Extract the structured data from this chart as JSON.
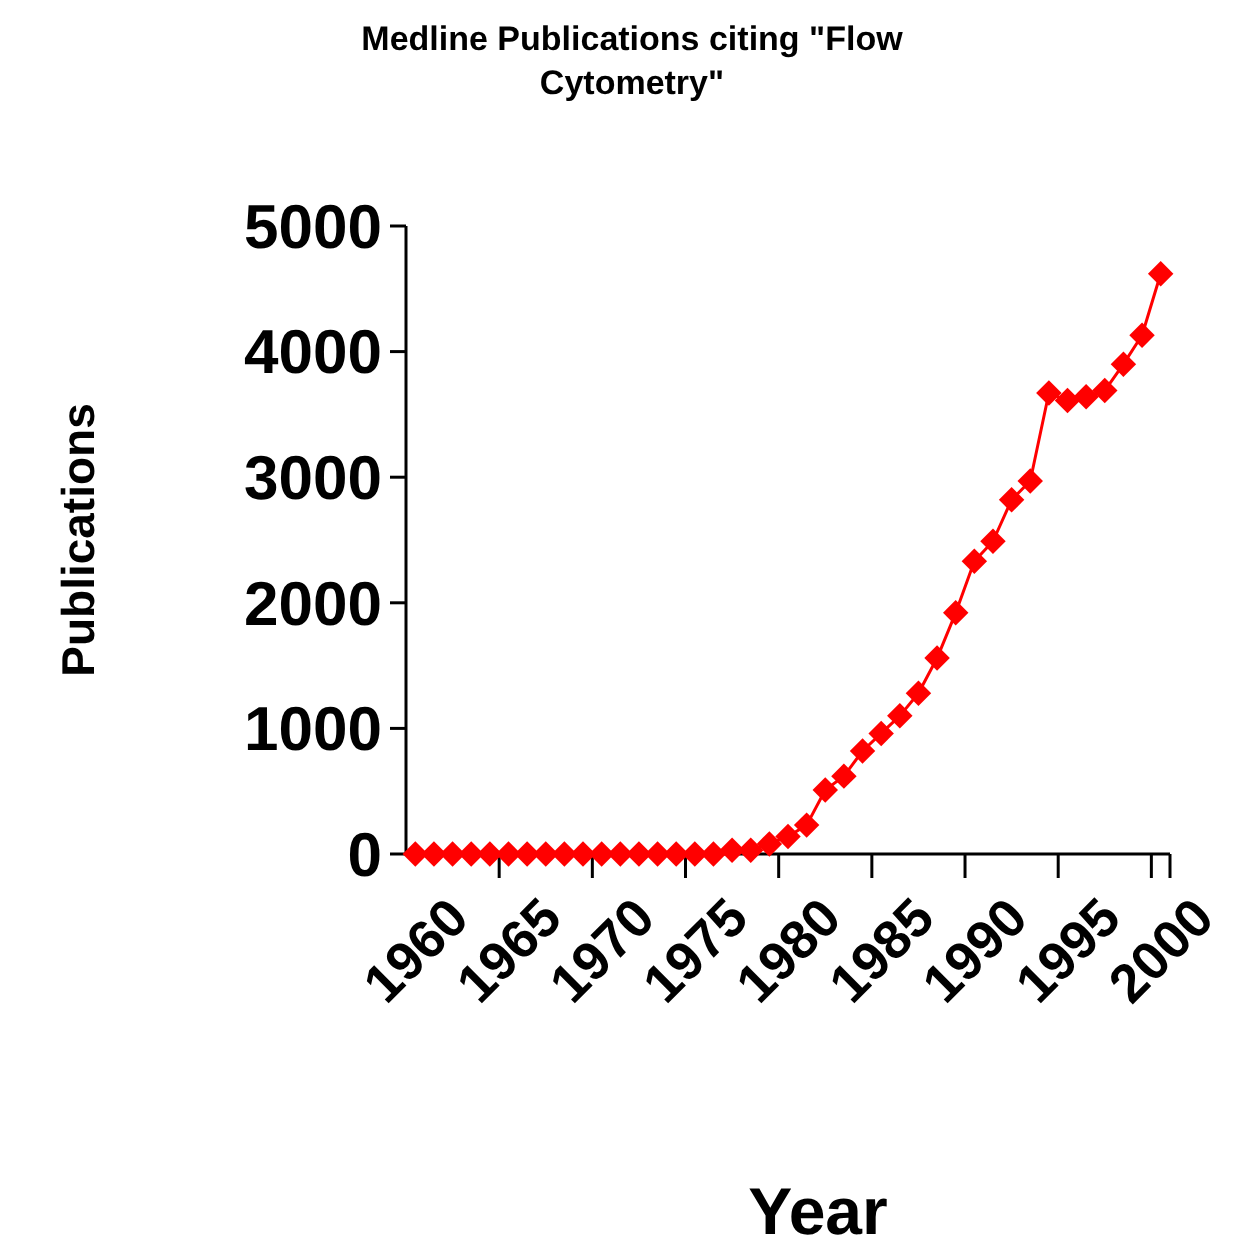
{
  "chart_data": {
    "type": "line",
    "title": "Medline Publications citing \"Flow Cytometry\"",
    "xlabel": "Year",
    "ylabel": "Publications",
    "categories": [
      "1960",
      null,
      null,
      null,
      null,
      "1965",
      null,
      null,
      null,
      null,
      "1970",
      null,
      null,
      null,
      null,
      "1975",
      null,
      null,
      null,
      null,
      "1980",
      null,
      null,
      null,
      null,
      "1985",
      null,
      null,
      null,
      null,
      "1990",
      null,
      null,
      null,
      null,
      "1995",
      null,
      null,
      null,
      null,
      "2000"
    ],
    "series": [
      {
        "color": "#ff0000",
        "values": [
          0,
          0,
          0,
          0,
          0,
          0,
          0,
          0,
          0,
          0,
          0,
          0,
          0,
          0,
          0,
          0,
          0,
          30,
          30,
          80,
          140,
          230,
          510,
          620,
          820,
          960,
          1100,
          1280,
          1560,
          1920,
          2330,
          2490,
          2820,
          2970,
          3670,
          3610,
          3640,
          3690,
          3900,
          4130,
          4620
        ]
      }
    ],
    "ylim": [
      0,
      5000
    ],
    "yticks": [
      0,
      1000,
      2000,
      3000,
      4000,
      5000
    ],
    "grid": false,
    "marker": "diamond",
    "line_style": "solid"
  }
}
